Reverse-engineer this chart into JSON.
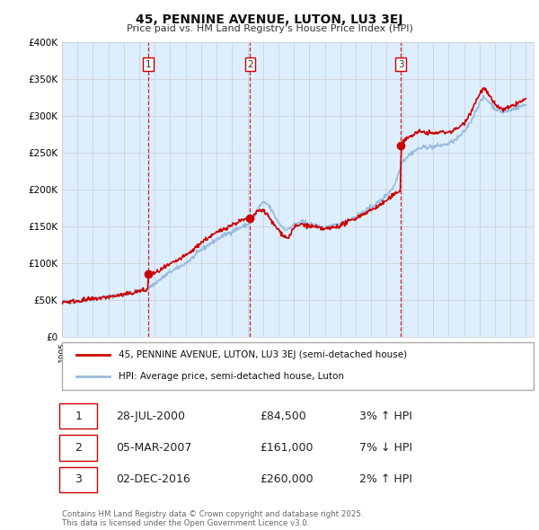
{
  "title": "45, PENNINE AVENUE, LUTON, LU3 3EJ",
  "subtitle": "Price paid vs. HM Land Registry's House Price Index (HPI)",
  "ylabel_ticks": [
    "£0",
    "£50K",
    "£100K",
    "£150K",
    "£200K",
    "£250K",
    "£300K",
    "£350K",
    "£400K"
  ],
  "ylim": [
    0,
    400000
  ],
  "xlim_start": 1995.0,
  "xlim_end": 2025.5,
  "sale_color": "#cc0000",
  "hpi_color": "#99bbdd",
  "vline_color": "#cc0000",
  "grid_color": "#cccccc",
  "bg_color": "#ffffff",
  "chart_bg_color": "#ddeeff",
  "sale_dates": [
    2000.57,
    2007.17,
    2016.92
  ],
  "sale_prices": [
    84500,
    161000,
    260000
  ],
  "sale_labels": [
    "1",
    "2",
    "3"
  ],
  "legend_sale_label": "45, PENNINE AVENUE, LUTON, LU3 3EJ (semi-detached house)",
  "legend_hpi_label": "HPI: Average price, semi-detached house, Luton",
  "table_rows": [
    {
      "num": "1",
      "date": "28-JUL-2000",
      "price": "£84,500",
      "change": "3% ↑ HPI"
    },
    {
      "num": "2",
      "date": "05-MAR-2007",
      "price": "£161,000",
      "change": "7% ↓ HPI"
    },
    {
      "num": "3",
      "date": "02-DEC-2016",
      "price": "£260,000",
      "change": "2% ↑ HPI"
    }
  ],
  "footnote": "Contains HM Land Registry data © Crown copyright and database right 2025.\nThis data is licensed under the Open Government Licence v3.0."
}
